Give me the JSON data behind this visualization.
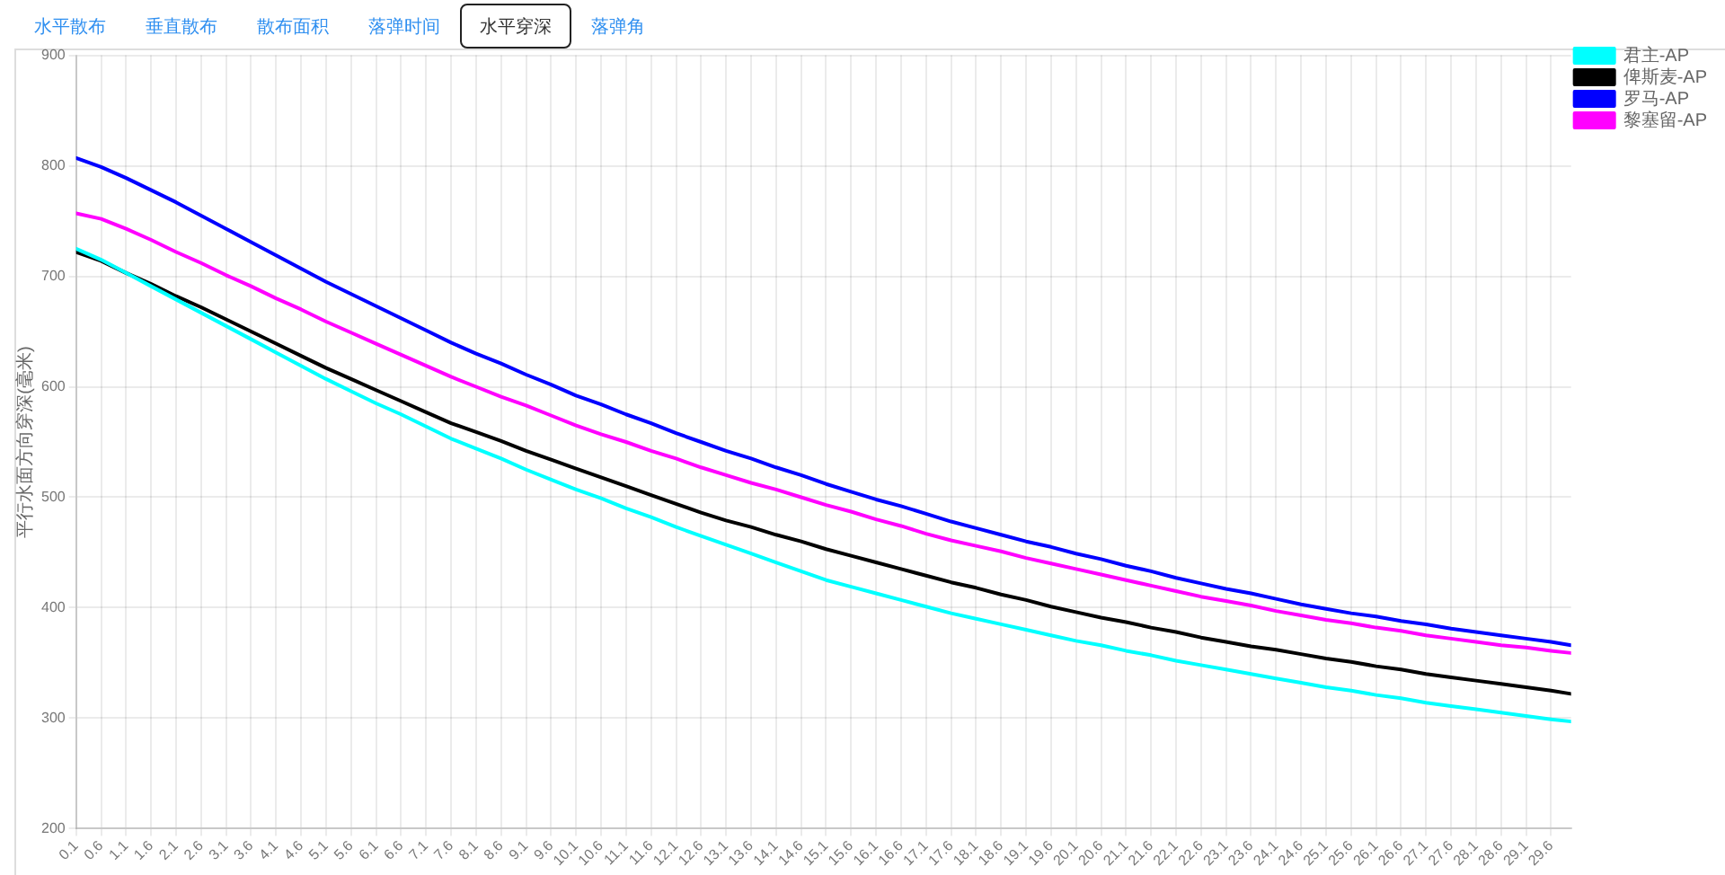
{
  "chart_data": {
    "type": "line",
    "title": "水平穿深",
    "annotations": [
      "水平散布",
      "垂直散布",
      "散布面积",
      "落弹时间",
      "落弹角"
    ],
    "ylabel": "平行水面方向穿深(毫米)",
    "x": [
      0.1,
      0.6,
      1.1,
      1.6,
      2.1,
      2.6,
      3.1,
      3.6,
      4.1,
      4.6,
      5.1,
      5.6,
      6.1,
      6.6,
      7.1,
      7.6,
      8.1,
      8.6,
      9.1,
      9.6,
      10.1,
      10.6,
      11.1,
      11.6,
      12.1,
      12.6,
      13.1,
      13.6,
      14.1,
      14.6,
      15.1,
      15.6,
      16.1,
      16.6,
      17.1,
      17.6,
      18.1,
      18.6,
      19.1,
      19.6,
      20.1,
      20.6,
      21.1,
      21.6,
      22.1,
      22.6,
      23.1,
      23.6,
      24.1,
      24.6,
      25.1,
      25.6,
      26.1,
      26.6,
      27.1,
      27.6,
      28.1,
      28.6,
      29.1,
      29.6,
      30
    ],
    "series": [
      {
        "name": "君主-AP",
        "color": "#00ffff",
        "values": [
          725,
          715,
          703,
          691,
          679,
          667,
          655,
          643,
          631,
          619,
          607,
          596,
          585,
          575,
          564,
          553,
          544,
          535,
          525,
          516,
          507,
          499,
          490,
          482,
          473,
          465,
          457,
          449,
          441,
          433,
          425,
          419,
          413,
          407,
          401,
          395,
          390,
          385,
          380,
          375,
          370,
          366,
          361,
          357,
          352,
          348,
          344,
          340,
          336,
          332,
          328,
          325,
          321,
          318,
          314,
          311,
          308,
          305,
          302,
          299,
          297
        ]
      },
      {
        "name": "俾斯麦-AP",
        "color": "#000000",
        "values": [
          722,
          714,
          703,
          693,
          682,
          672,
          661,
          650,
          639,
          628,
          617,
          607,
          597,
          587,
          577,
          567,
          559,
          551,
          542,
          534,
          526,
          518,
          510,
          502,
          494,
          486,
          479,
          473,
          466,
          460,
          453,
          447,
          441,
          435,
          429,
          423,
          418,
          412,
          407,
          401,
          396,
          391,
          387,
          382,
          378,
          373,
          369,
          365,
          362,
          358,
          354,
          351,
          347,
          344,
          340,
          337,
          334,
          331,
          328,
          325,
          322
        ]
      },
      {
        "name": "罗马-AP",
        "color": "#0000ff",
        "values": [
          807,
          799,
          789,
          778,
          767,
          755,
          743,
          731,
          719,
          707,
          695,
          684,
          673,
          662,
          651,
          640,
          630,
          621,
          611,
          602,
          592,
          584,
          575,
          567,
          558,
          550,
          542,
          535,
          527,
          520,
          512,
          505,
          498,
          492,
          485,
          478,
          472,
          466,
          460,
          455,
          449,
          444,
          438,
          433,
          427,
          422,
          417,
          413,
          408,
          403,
          399,
          395,
          392,
          388,
          385,
          381,
          378,
          375,
          372,
          369,
          366
        ]
      },
      {
        "name": "黎塞留-AP",
        "color": "#ff00ff",
        "values": [
          757,
          752,
          743,
          733,
          722,
          712,
          701,
          691,
          680,
          670,
          659,
          649,
          639,
          629,
          619,
          609,
          600,
          591,
          583,
          574,
          565,
          557,
          550,
          542,
          535,
          527,
          520,
          513,
          507,
          500,
          493,
          487,
          480,
          474,
          467,
          461,
          456,
          451,
          445,
          440,
          435,
          430,
          425,
          420,
          415,
          410,
          406,
          402,
          397,
          393,
          389,
          386,
          382,
          379,
          375,
          372,
          369,
          366,
          364,
          361,
          359
        ]
      }
    ],
    "xlim": [
      0.1,
      30
    ],
    "xticks": [
      0.1,
      0.6,
      1.1,
      1.6,
      2.1,
      2.6,
      3.1,
      3.6,
      4.1,
      4.6,
      5.1,
      5.6,
      6.1,
      6.6,
      7.1,
      7.6,
      8.1,
      8.6,
      9.1,
      9.6,
      10.1,
      10.6,
      11.1,
      11.6,
      12.1,
      12.6,
      13.1,
      13.6,
      14.1,
      14.6,
      15.1,
      15.6,
      16.1,
      16.6,
      17.1,
      17.6,
      18.1,
      18.6,
      19.1,
      19.6,
      20.1,
      20.6,
      21.1,
      21.6,
      22.1,
      22.6,
      23.1,
      23.6,
      24.1,
      24.6,
      25.1,
      25.6,
      26.1,
      26.6,
      27.1,
      27.6,
      28.1,
      28.6,
      29.1,
      29.6
    ],
    "ylim": [
      200,
      900
    ],
    "yticks": [
      200,
      300,
      400,
      500,
      600,
      700,
      800,
      900
    ],
    "grid": true,
    "legend": "top right"
  }
}
